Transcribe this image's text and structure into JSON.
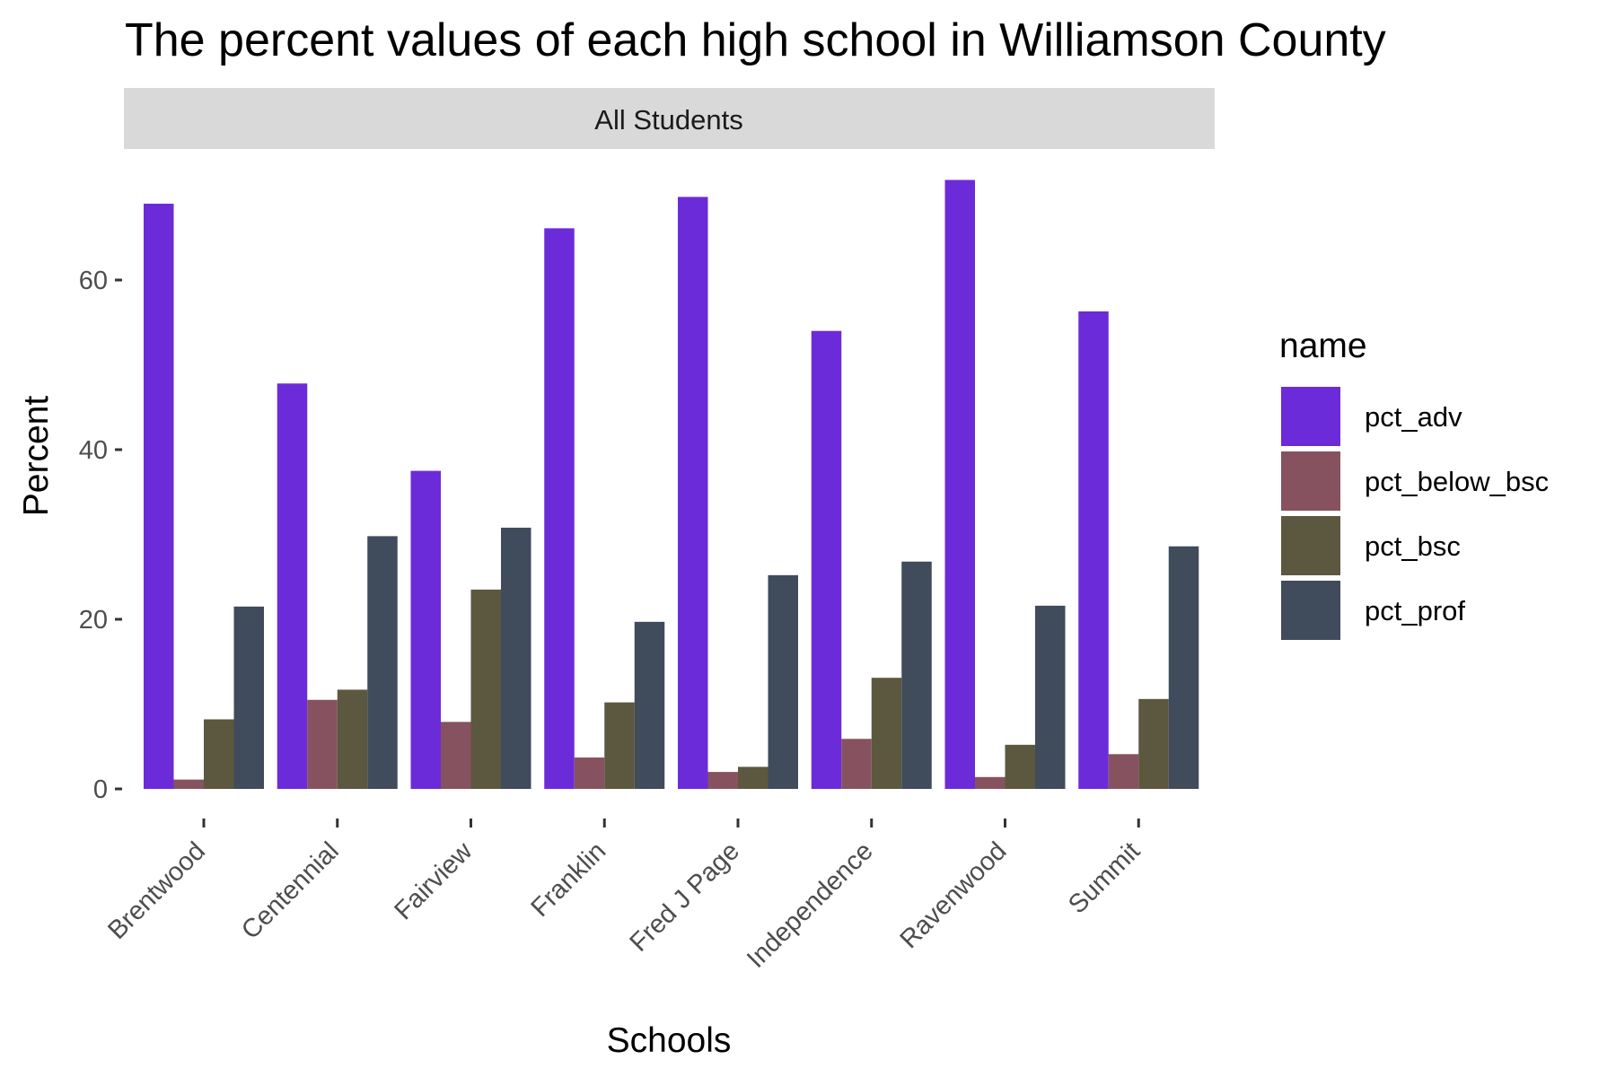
{
  "chart_data": {
    "type": "bar",
    "title": "The percent values of each high school in Williamson County",
    "facet_label": "All Students",
    "xlabel": "Schools",
    "ylabel": "Percent",
    "categories": [
      "Brentwood",
      "Centennial",
      "Fairview",
      "Franklin",
      "Fred J Page",
      "Independence",
      "Ravenwood",
      "Summit"
    ],
    "yticks": [
      0,
      20,
      40,
      60
    ],
    "ylim": [
      0,
      72
    ],
    "grid": false,
    "legend": {
      "title": "name",
      "position": "right"
    },
    "series": [
      {
        "name": "pct_adv",
        "color": "#6C2BD9",
        "values": [
          69.0,
          47.8,
          37.5,
          66.1,
          69.8,
          54.0,
          71.8,
          56.3
        ]
      },
      {
        "name": "pct_below_bsc",
        "color": "#87525F",
        "values": [
          1.1,
          10.5,
          7.9,
          3.7,
          2.0,
          5.9,
          1.4,
          4.1
        ]
      },
      {
        "name": "pct_bsc",
        "color": "#5C573F",
        "values": [
          8.2,
          11.7,
          23.5,
          10.2,
          2.6,
          13.1,
          5.2,
          10.6
        ]
      },
      {
        "name": "pct_prof",
        "color": "#404B5C",
        "values": [
          21.5,
          29.8,
          30.8,
          19.7,
          25.2,
          26.8,
          21.6,
          28.6
        ]
      }
    ]
  }
}
